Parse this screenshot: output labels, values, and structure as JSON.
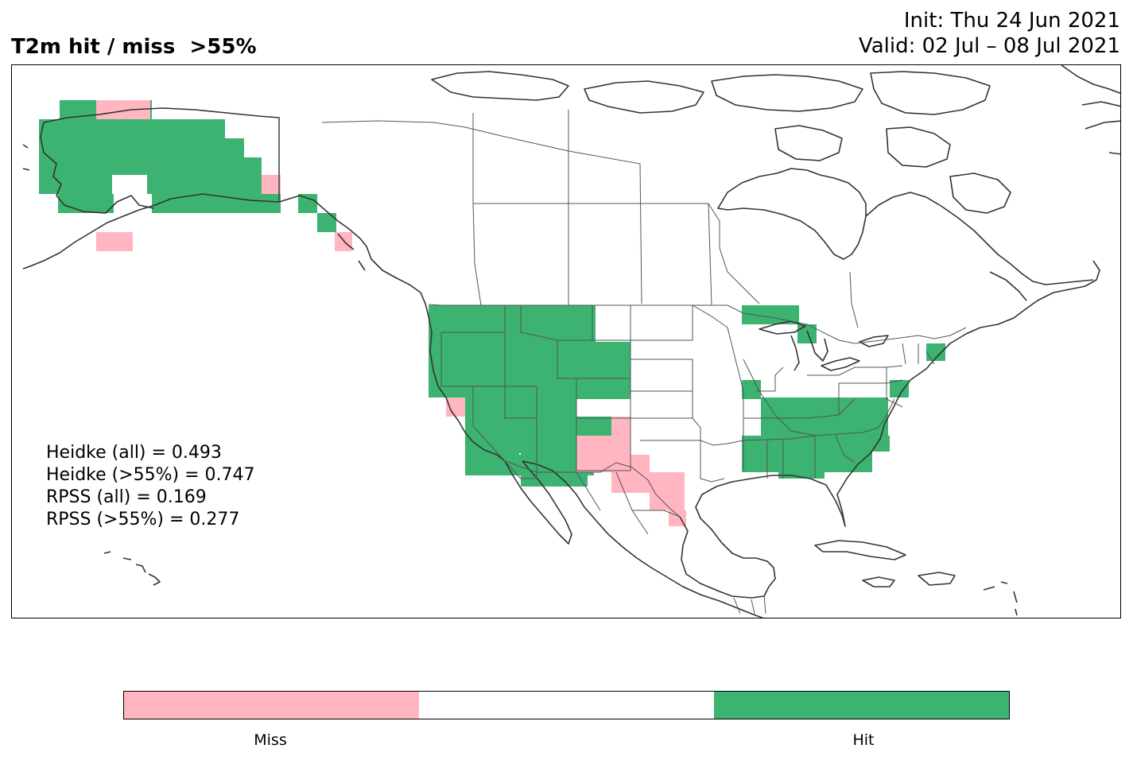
{
  "title": {
    "left": "T2m hit / miss  >55%",
    "init": "Init: Thu 24 Jun 2021",
    "valid": "Valid: 02 Jul – 08 Jul 2021"
  },
  "colors": {
    "hit": "#3cb371",
    "miss": "#ffb6c1",
    "neutral": "#ffffff",
    "coast": "#333333",
    "border": "#555555"
  },
  "stats": {
    "heidke_all": "Heidke (all) = 0.493",
    "heidke_55": "Heidke (>55%) = 0.747",
    "rpss_all": "RPSS (all) = 0.169",
    "rpss_55": "RPSS (>55%) = 0.277"
  },
  "colorbar": {
    "segments": [
      "miss",
      "neutral",
      "hit"
    ],
    "labels": {
      "miss": "Miss",
      "hit": "Hit"
    }
  },
  "regions": {
    "hit": [
      "Alaska (most)",
      "Alaska panhandle (parts)",
      "Washington",
      "Oregon",
      "Idaho",
      "Montana (west)",
      "Nevada",
      "Utah",
      "Wyoming",
      "Colorado",
      "Arizona",
      "New Mexico (west)",
      "California (most)",
      "Upper Michigan / Lake Superior area",
      "Kentucky",
      "Tennessee",
      "Virginia",
      "North Carolina",
      "South Carolina",
      "Georgia (north)",
      "Alabama (north)",
      "Maryland / Delaware",
      "Maine (south)"
    ],
    "miss": [
      "Northern Alaska coast (part)",
      "SW Alaska coast",
      "Yukon border (part)",
      "Central California coast (part)",
      "SE Alaska (part)",
      "New Mexico (east)",
      "West Texas",
      "South Texas"
    ]
  }
}
